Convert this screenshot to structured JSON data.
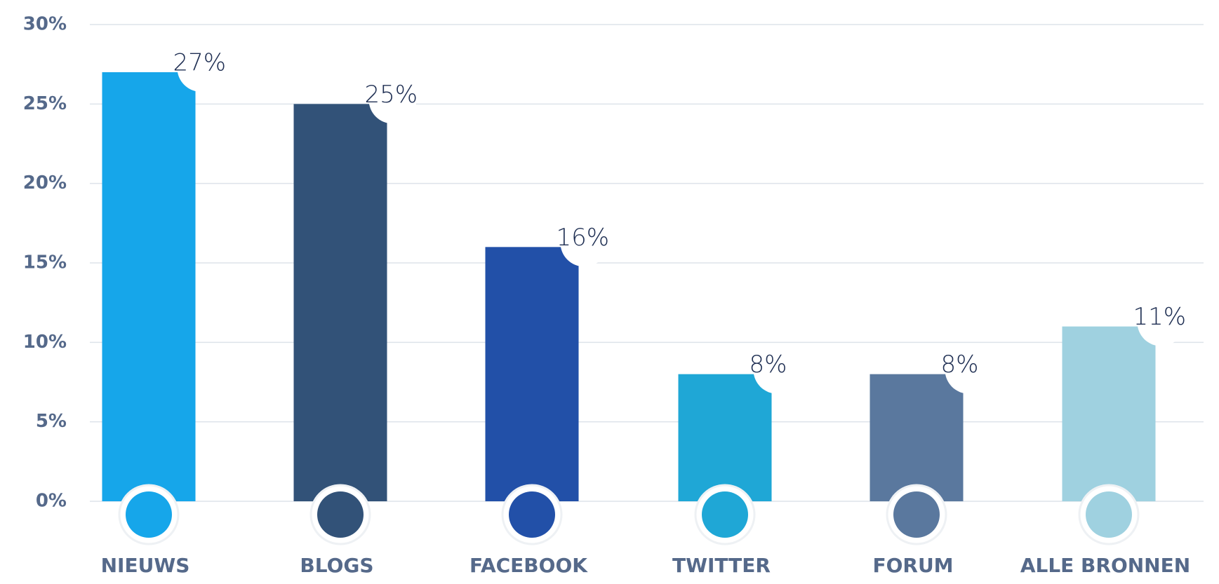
{
  "chart_data": {
    "type": "bar",
    "categories": [
      "NIEUWS",
      "BLOGS",
      "FACEBOOK",
      "TWITTER",
      "FORUM",
      "ALLE BRONNEN"
    ],
    "values": [
      27,
      25,
      16,
      8,
      8,
      11
    ],
    "value_labels": [
      "27%",
      "25%",
      "16%",
      "8%",
      "8%",
      "11%"
    ],
    "colors": [
      "#16a6ea",
      "#325278",
      "#2250a8",
      "#1fa7d6",
      "#5a789e",
      "#9fd1e0"
    ],
    "ylim": [
      0,
      30
    ],
    "yticks": [
      {
        "value": 0,
        "label": "0%"
      },
      {
        "value": 5,
        "label": "5%"
      },
      {
        "value": 10,
        "label": "10%"
      },
      {
        "value": 15,
        "label": "15%"
      },
      {
        "value": 20,
        "label": "20%"
      },
      {
        "value": 25,
        "label": "25%"
      },
      {
        "value": 30,
        "label": "30%"
      }
    ],
    "grid": true
  }
}
